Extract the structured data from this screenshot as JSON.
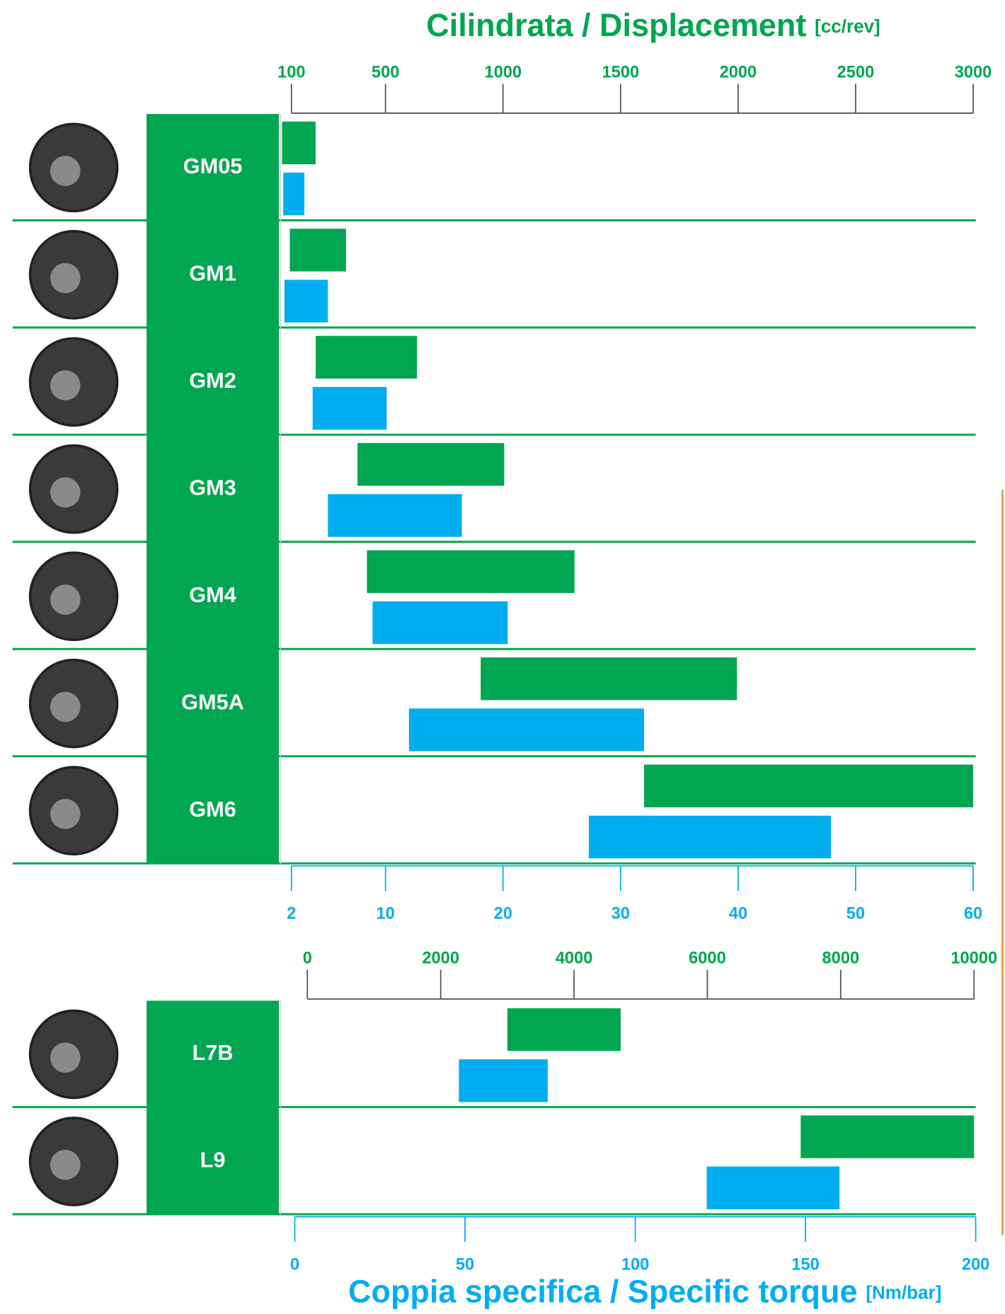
{
  "chart_data": [
    {
      "type": "range-bar",
      "title": "Cilindrata / Displacement",
      "title_unit": "[cc/rev]",
      "categories": [
        "GM05",
        "GM1",
        "GM2",
        "GM3",
        "GM4",
        "GM5A",
        "GM6"
      ],
      "displacement_low": [
        60,
        93,
        203,
        381,
        421,
        905,
        1600
      ],
      "displacement_high": [
        203,
        332,
        634,
        1005,
        1304,
        1995,
        3000
      ],
      "torque_low": [
        1.3,
        1.4,
        3.8,
        5.1,
        8.9,
        12.0,
        27.3
      ],
      "torque_high": [
        3.1,
        5.1,
        10.1,
        16.5,
        20.4,
        32.0,
        47.9
      ],
      "displacement_color": "#00a650",
      "torque_color": "#00aeef",
      "xlim": [
        100,
        3000
      ],
      "xticks": [
        100,
        500,
        1000,
        1500,
        2000,
        2500,
        3000
      ],
      "x2lim": [
        2,
        60
      ],
      "x2ticks": [
        2,
        10,
        20,
        30,
        40,
        50,
        60
      ]
    },
    {
      "type": "range-bar",
      "x2_label": "Coppia specifica / Specific torque",
      "x2_unit": "[Nm/bar]",
      "categories": [
        "L7B",
        "L9"
      ],
      "displacement_low": [
        3000,
        7400
      ],
      "displacement_high": [
        4700,
        10000
      ],
      "torque_low": [
        48.2,
        121
      ],
      "torque_high": [
        74.3,
        160
      ],
      "displacement_color": "#00a650",
      "torque_color": "#00aeef",
      "xlim": [
        0,
        10000
      ],
      "xticks": [
        0,
        2000,
        4000,
        6000,
        8000,
        10000
      ],
      "x2lim": [
        0,
        200
      ],
      "x2ticks": [
        0,
        50,
        100,
        150,
        200
      ]
    }
  ]
}
